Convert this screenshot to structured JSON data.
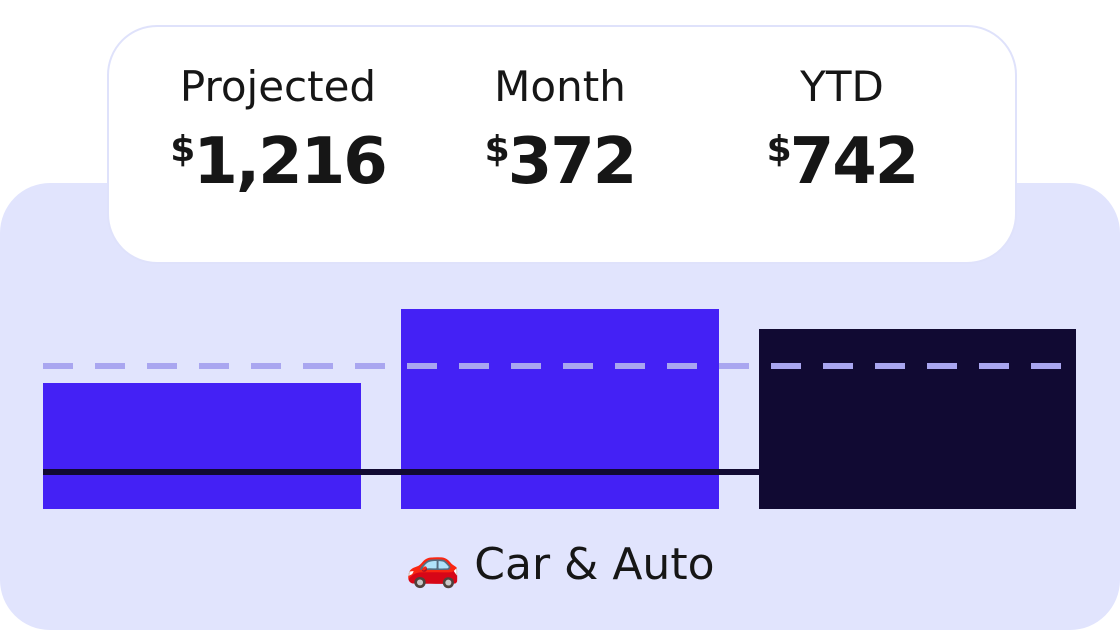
{
  "stats": [
    {
      "label": "Projected",
      "value": "$1,216"
    },
    {
      "label": "Month",
      "value": "$372"
    },
    {
      "label": "YTD",
      "value": "$742"
    }
  ],
  "category": "🚗 Car & Auto"
}
